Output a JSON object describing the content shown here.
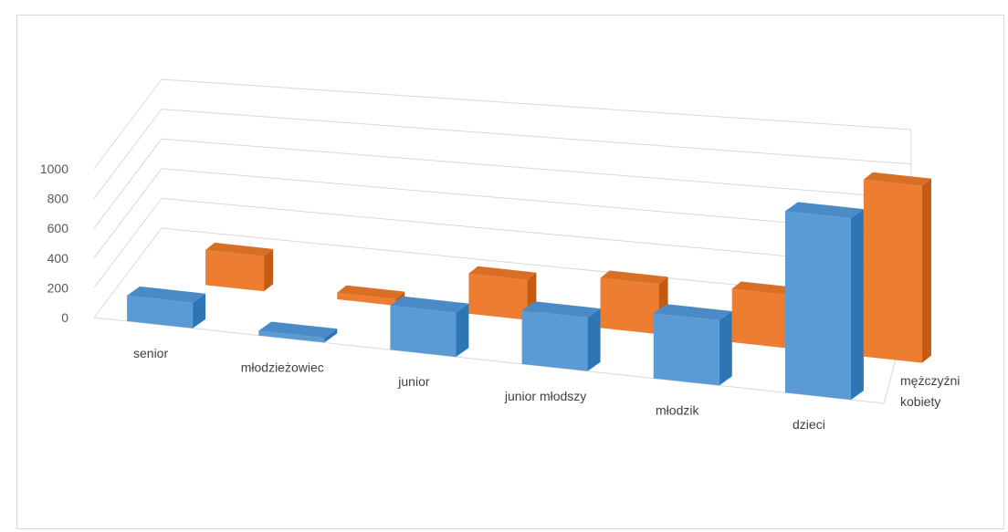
{
  "chart_data": {
    "type": "bar",
    "variant": "3d-column",
    "title": "",
    "categories": [
      "senior",
      "młodzieżowiec",
      "junior",
      "junior młodszy",
      "młodzik",
      "dzieci"
    ],
    "series": [
      {
        "name": "kobiety",
        "values": [
          110,
          20,
          190,
          230,
          280,
          780
        ]
      },
      {
        "name": "mężczyźni",
        "values": [
          210,
          40,
          240,
          300,
          320,
          1060
        ]
      }
    ],
    "y_ticks": [
      0,
      200,
      400,
      600,
      800,
      1000
    ],
    "ylim": [
      0,
      1000
    ],
    "grid": true,
    "colors": {
      "kobiety": "#5b9bd5",
      "mężczyźni": "#ed7d31",
      "grid": "#d9d9d9",
      "axis_text": "#595959"
    }
  }
}
